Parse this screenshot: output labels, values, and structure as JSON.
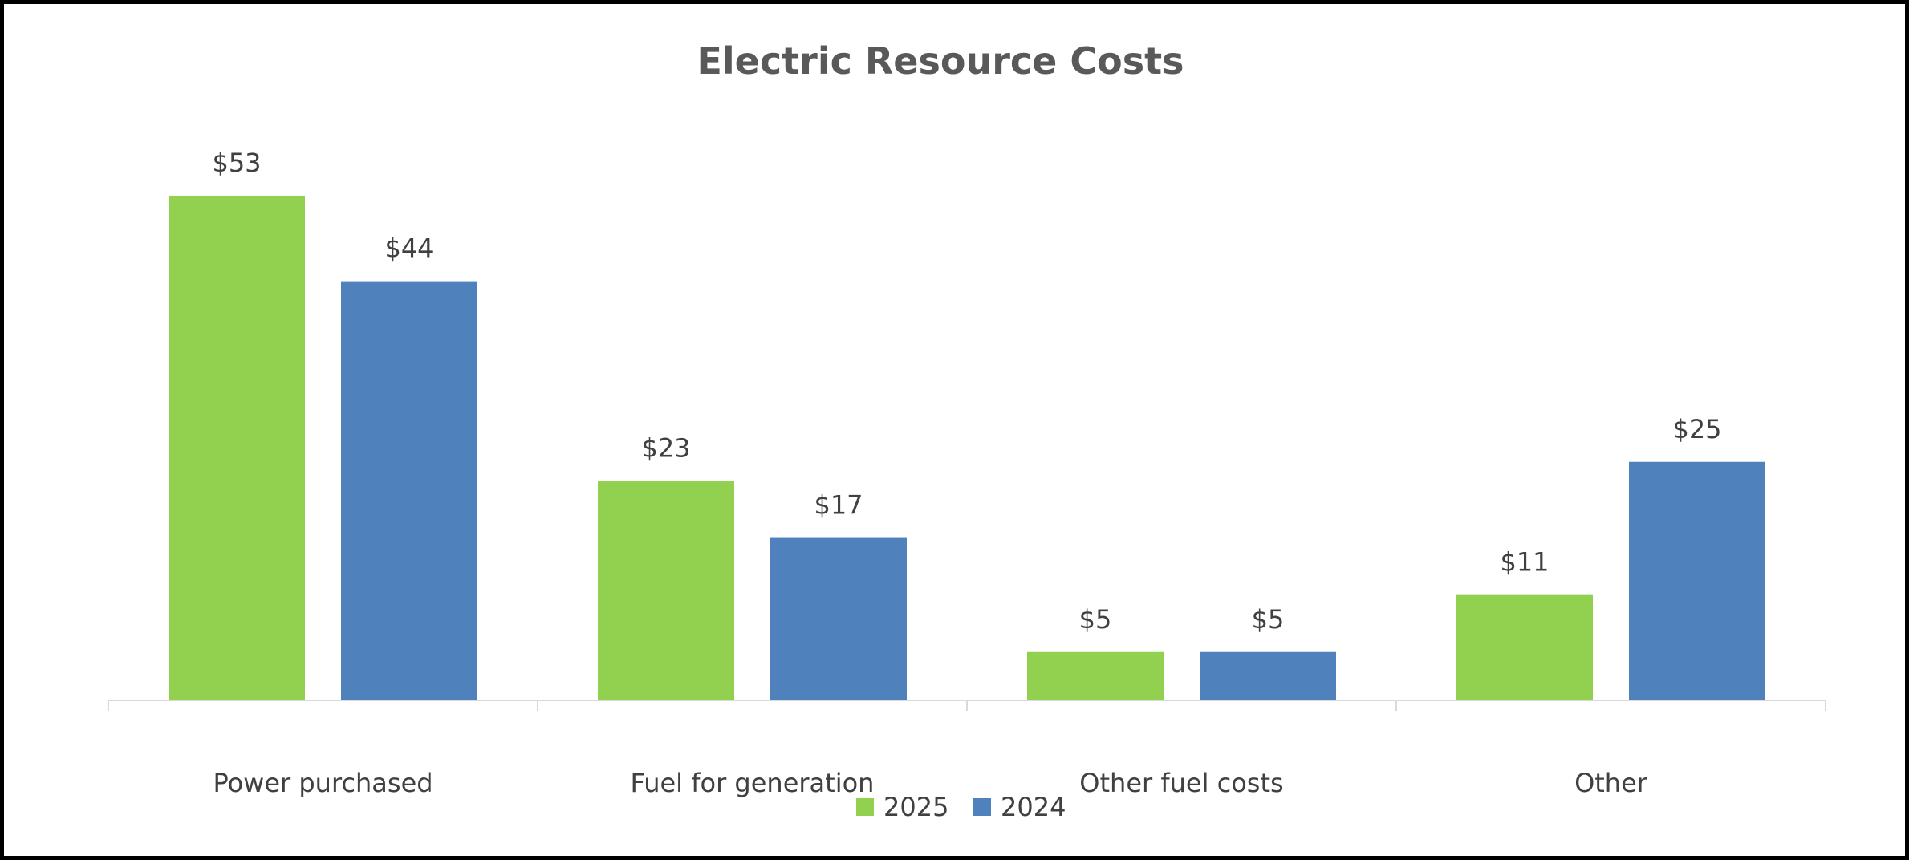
{
  "chart_data": {
    "type": "bar",
    "title": "Electric Resource Costs",
    "xlabel": "",
    "ylabel": "",
    "ylim": [
      0,
      60
    ],
    "grid": false,
    "legend_position": "bottom",
    "categories": [
      "Power purchased",
      "Fuel for generation",
      "Other fuel costs",
      "Other"
    ],
    "series": [
      {
        "name": "2025",
        "color": "#92D050",
        "values": [
          53,
          23,
          5,
          11
        ],
        "labels": [
          "$53",
          "$23",
          "$5",
          "$11"
        ]
      },
      {
        "name": "2024",
        "color": "#4F81BD",
        "values": [
          44,
          17,
          5,
          25
        ],
        "labels": [
          "$44",
          "$17",
          "$5",
          "$25"
        ]
      }
    ]
  }
}
